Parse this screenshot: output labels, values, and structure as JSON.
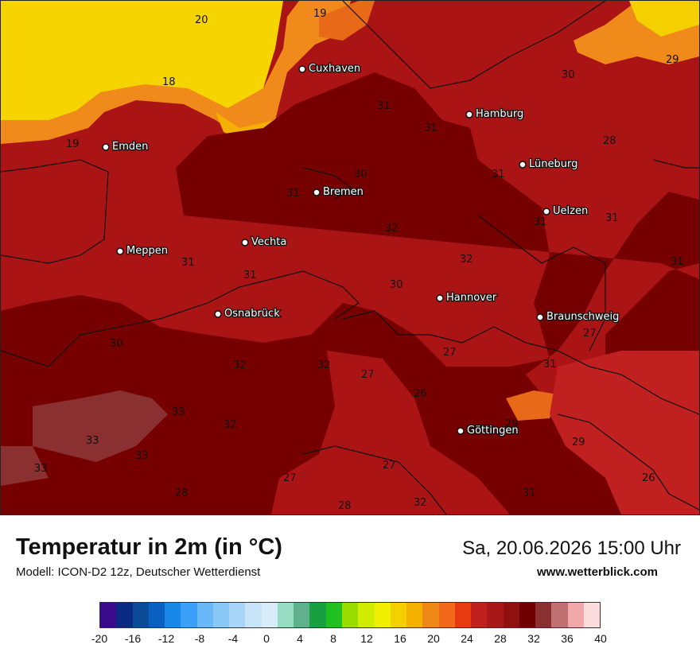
{
  "map": {
    "cities": [
      {
        "name": "Cuxhaven",
        "id": "cuxhaven"
      },
      {
        "name": "Hamburg",
        "id": "hamburg"
      },
      {
        "name": "Emden",
        "id": "emden"
      },
      {
        "name": "Lüneburg",
        "id": "lueneburg"
      },
      {
        "name": "Bremen",
        "id": "bremen"
      },
      {
        "name": "Uelzen",
        "id": "uelzen"
      },
      {
        "name": "Vechta",
        "id": "vechta"
      },
      {
        "name": "Meppen",
        "id": "meppen"
      },
      {
        "name": "Hannover",
        "id": "hannover"
      },
      {
        "name": "Osnabrück",
        "id": "osnabrueck"
      },
      {
        "name": "Braunschweig",
        "id": "braunschweig"
      },
      {
        "name": "Göttingen",
        "id": "goettingen"
      }
    ],
    "values": [
      "20",
      "19",
      "18",
      "19",
      "30",
      "29",
      "31",
      "31",
      "28",
      "31",
      "30",
      "31",
      "32",
      "31",
      "31",
      "31",
      "32",
      "31",
      "31",
      "30",
      "30",
      "32",
      "32",
      "27",
      "27",
      "31",
      "27",
      "26",
      "33",
      "32",
      "29",
      "29",
      "33",
      "33",
      "33",
      "27",
      "27",
      "26",
      "28",
      "28",
      "32",
      "31"
    ]
  },
  "footer": {
    "title": "Temperatur in 2m (in °C)",
    "subtitle": "Modell: ICON-D2 12z, Deutscher Wetterdienst",
    "datetime": "Sa, 20.06.2026 15:00 Uhr",
    "website": "www.wetterblick.com"
  },
  "legend": {
    "colors": [
      "#3a0a8c",
      "#0a2a82",
      "#0a4a96",
      "#0a60c0",
      "#1888e8",
      "#3aa0f8",
      "#6ab8f8",
      "#8ac8f8",
      "#a8d4f8",
      "#c8e4f8",
      "#d8ecfa",
      "#98dcc4",
      "#60b08c",
      "#18a040",
      "#20c020",
      "#98dc00",
      "#d0ec00",
      "#f0f000",
      "#f4d000",
      "#f4b000",
      "#f08818",
      "#f06818",
      "#e83a10",
      "#c02020",
      "#a81818",
      "#901010",
      "#700000",
      "#8a3030",
      "#c07070",
      "#f0a8a8",
      "#fcdcdc"
    ],
    "ticks": [
      "-20",
      "-16",
      "-12",
      "-8",
      "-4",
      "0",
      "4",
      "8",
      "12",
      "16",
      "20",
      "24",
      "28",
      "32",
      "36",
      "40"
    ]
  }
}
